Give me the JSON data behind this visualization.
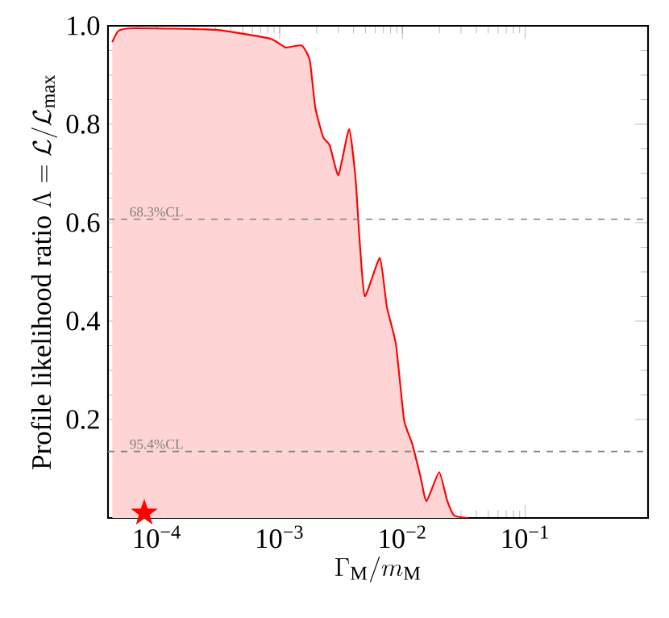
{
  "chart_data": {
    "type": "area",
    "xlabel": "\\Gamma_\\mathrm{M}/m_\\mathrm{M}",
    "ylabel": "\\mathrm{Profile\\ likelihood\\ ratio}\\ \\Lambda = \\mathcal{L}/\\mathcal{L}_\\mathrm{max}",
    "log": "x",
    "xlim": [
      4e-05,
      1
    ],
    "ylim": [
      0,
      1
    ],
    "xticks": [
      {
        "value": 0.0001,
        "label": "10$^{−4}$"
      },
      {
        "value": 0.001,
        "label": "10$^{−3}$"
      },
      {
        "value": 0.01,
        "label": "10$^{−2}$"
      },
      {
        "value": 0.1,
        "label": "10$^{−1}$"
      }
    ],
    "yticks": [
      0.2,
      0.4,
      0.6,
      0.8,
      {
        "value": 1,
        "label": "1.0"
      }
    ],
    "series": [
      {
        "color": "#ff0000",
        "x": [
          4.33e-05,
          4.88e-05,
          6.55e-05,
          0.000298,
          0.000834,
          0.00112,
          0.00151,
          0.00176,
          0.00195,
          0.00226,
          0.00256,
          0.00301,
          0.00368,
          0.00415,
          0.00446,
          0.00493,
          0.00655,
          0.00745,
          0.00885,
          0.0103,
          0.012,
          0.014,
          0.0157,
          0.0199,
          0.0231,
          0.0264,
          0.0346
        ],
        "values": [
          0.967,
          0.99,
          0.995,
          0.992,
          0.974,
          0.956,
          0.96,
          0.93,
          0.834,
          0.774,
          0.757,
          0.697,
          0.79,
          0.69,
          0.571,
          0.451,
          0.528,
          0.43,
          0.353,
          0.2,
          0.151,
          0.085,
          0.034,
          0.093,
          0.036,
          0.005,
          0
        ]
      },
      {
        "type": "scatter",
        "color": "#ff0000",
        "marker": "star",
        "x": [
          7.9e-05
        ],
        "values": [
          0.01
        ]
      }
    ],
    "ref_lines": [
      {
        "axis": "y",
        "value": 0.607,
        "label": "68.3%CL",
        "color": "#808080",
        "line_style": "dashed"
      },
      {
        "axis": "y",
        "value": 0.135,
        "label": "95.4%CL",
        "color": "#808080",
        "line_style": "dashed"
      }
    ]
  }
}
